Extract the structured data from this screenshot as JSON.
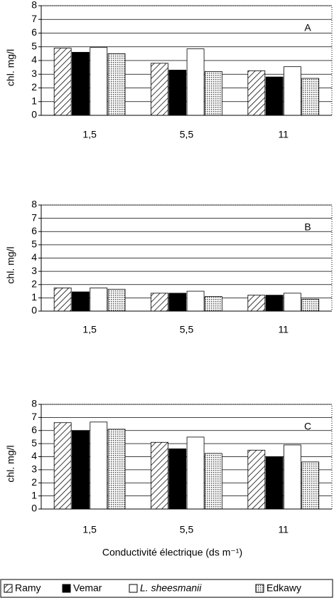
{
  "chart_data": [
    {
      "type": "bar",
      "annotation": "A",
      "ylabel": "chl. mg/l",
      "categories": [
        "1,5",
        "5,5",
        "11"
      ],
      "series": [
        {
          "values": [
            4.9,
            3.8,
            3.25
          ]
        },
        {
          "values": [
            4.6,
            3.3,
            2.8
          ]
        },
        {
          "values": [
            4.95,
            4.85,
            3.55
          ]
        },
        {
          "values": [
            4.5,
            3.2,
            2.7
          ]
        }
      ],
      "ylim": [
        0,
        8
      ],
      "yticks": [
        0,
        1,
        2,
        3,
        4,
        5,
        6,
        7,
        8
      ],
      "grid": true
    },
    {
      "type": "bar",
      "annotation": "B",
      "ylabel": "chl. mg/l",
      "categories": [
        "1,5",
        "5,5",
        "11"
      ],
      "series": [
        {
          "values": [
            1.75,
            1.35,
            1.2
          ]
        },
        {
          "values": [
            1.45,
            1.35,
            1.2
          ]
        },
        {
          "values": [
            1.75,
            1.5,
            1.35
          ]
        },
        {
          "values": [
            1.65,
            1.1,
            0.9
          ]
        }
      ],
      "ylim": [
        0,
        8
      ],
      "yticks": [
        0,
        1,
        2,
        3,
        4,
        5,
        6,
        7,
        8
      ],
      "grid": true
    },
    {
      "type": "bar",
      "annotation": "C",
      "ylabel": "chl. mg/l",
      "xlabel": "Conductivité électrique (ds m⁻¹)",
      "categories": [
        "1,5",
        "5,5",
        "11"
      ],
      "series": [
        {
          "name": "Ramy",
          "color": "#000000",
          "pattern": "hatch",
          "values": [
            6.6,
            5.1,
            4.5
          ]
        },
        {
          "name": "Vemar",
          "color": "#000000",
          "pattern": "solid",
          "values": [
            6.0,
            4.6,
            4.0
          ]
        },
        {
          "name": "L. sheesmanii",
          "color": "#ffffff",
          "pattern": "solid",
          "italic": true,
          "values": [
            6.65,
            5.5,
            4.9
          ]
        },
        {
          "name": "Edkawy",
          "color": "#555555",
          "pattern": "dots",
          "values": [
            6.1,
            4.25,
            3.6
          ]
        }
      ],
      "ylim": [
        0,
        8
      ],
      "yticks": [
        0,
        1,
        2,
        3,
        4,
        5,
        6,
        7,
        8
      ],
      "grid": true
    }
  ]
}
